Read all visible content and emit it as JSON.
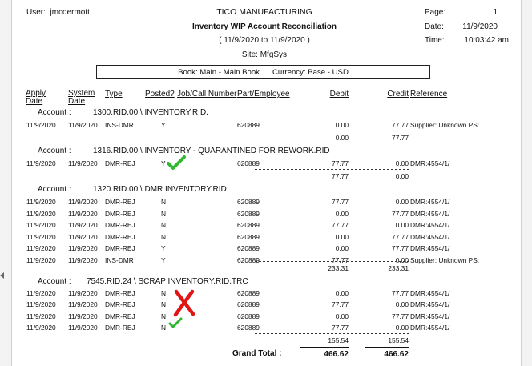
{
  "header": {
    "user_label": "User:",
    "user": "jmcdermott",
    "company": "TICO MANUFACTURING",
    "title": "Inventory WIP Account Reconciliation",
    "range": "( 11/9/2020 to 11/9/2020 )",
    "site": "Site: MfgSys",
    "page_label": "Page:",
    "page_value": "1",
    "date_label": "Date:",
    "date_value": "11/9/2020",
    "time_label": "Time:",
    "time_value": "10:03:42 am"
  },
  "book": {
    "book_text": "Book: Main - Main Book",
    "currency_text": "Currency: Base - USD"
  },
  "columns": {
    "apply_date": [
      "Apply",
      "Date"
    ],
    "system_date": [
      "System",
      "Date"
    ],
    "type": "Type",
    "posted": "Posted?",
    "job": "Job/Call Number",
    "part": "Part/Employee",
    "debit": "Debit",
    "credit": "Credit",
    "reference": "Reference"
  },
  "account_label": "Account :",
  "accounts": [
    {
      "name": "1300.RID.00 \\ INVENTORY.RID.",
      "rows": [
        {
          "apply": "11/9/2020",
          "system": "11/9/2020",
          "type": "INS-DMR",
          "posted": "Y",
          "part": "620889",
          "debit": "0.00",
          "credit": "77.77",
          "ref": "Supplier: Unknown PS:"
        }
      ],
      "total_debit": "0.00",
      "total_credit": "77.77"
    },
    {
      "name": "1316.RID.00 \\ INVENTORY - QUARANTINED FOR REWORK.RID",
      "rows": [
        {
          "apply": "11/9/2020",
          "system": "11/9/2020",
          "type": "DMR-REJ",
          "posted": "Y",
          "part": "620889",
          "debit": "77.77",
          "credit": "0.00",
          "ref": "DMR:4554/1/"
        }
      ],
      "total_debit": "77.77",
      "total_credit": "0.00"
    },
    {
      "name": "1320.RID.00 \\ DMR INVENTORY.RID.",
      "rows": [
        {
          "apply": "11/9/2020",
          "system": "11/9/2020",
          "type": "DMR-REJ",
          "posted": "N",
          "part": "620889",
          "debit": "77.77",
          "credit": "0.00",
          "ref": "DMR:4554/1/"
        },
        {
          "apply": "11/9/2020",
          "system": "11/9/2020",
          "type": "DMR-REJ",
          "posted": "N",
          "part": "620889",
          "debit": "0.00",
          "credit": "77.77",
          "ref": "DMR:4554/1/"
        },
        {
          "apply": "11/9/2020",
          "system": "11/9/2020",
          "type": "DMR-REJ",
          "posted": "N",
          "part": "620889",
          "debit": "77.77",
          "credit": "0.00",
          "ref": "DMR:4554/1/"
        },
        {
          "apply": "11/9/2020",
          "system": "11/9/2020",
          "type": "DMR-REJ",
          "posted": "N",
          "part": "620889",
          "debit": "0.00",
          "credit": "77.77",
          "ref": "DMR:4554/1/"
        },
        {
          "apply": "11/9/2020",
          "system": "11/9/2020",
          "type": "DMR-REJ",
          "posted": "Y",
          "part": "620889",
          "debit": "0.00",
          "credit": "77.77",
          "ref": "DMR:4554/1/"
        },
        {
          "apply": "11/9/2020",
          "system": "11/9/2020",
          "type": "INS-DMR",
          "posted": "Y",
          "part": "620889",
          "debit": "77.77",
          "credit": "0.00",
          "ref": "Supplier: Unknown PS:"
        }
      ],
      "total_debit": "233.31",
      "total_credit": "233.31"
    },
    {
      "name": "7545.RID.24 \\ SCRAP INVENTORY.RID.TRC",
      "rows": [
        {
          "apply": "11/9/2020",
          "system": "11/9/2020",
          "type": "DMR-REJ",
          "posted": "N",
          "part": "620889",
          "debit": "0.00",
          "credit": "77.77",
          "ref": "DMR:4554/1/"
        },
        {
          "apply": "11/9/2020",
          "system": "11/9/2020",
          "type": "DMR-REJ",
          "posted": "N",
          "part": "620889",
          "debit": "77.77",
          "credit": "0.00",
          "ref": "DMR:4554/1/"
        },
        {
          "apply": "11/9/2020",
          "system": "11/9/2020",
          "type": "DMR-REJ",
          "posted": "N",
          "part": "620889",
          "debit": "0.00",
          "credit": "77.77",
          "ref": "DMR:4554/1/"
        },
        {
          "apply": "11/9/2020",
          "system": "11/9/2020",
          "type": "DMR-REJ",
          "posted": "N",
          "part": "620889",
          "debit": "77.77",
          "credit": "0.00",
          "ref": "DMR:4554/1/"
        }
      ],
      "total_debit": "155.54",
      "total_credit": "155.54"
    }
  ],
  "grand_total": {
    "label": "Grand Total :",
    "debit": "466.62",
    "credit": "466.62"
  },
  "annotations": {
    "check_color": "#2fb82f",
    "x_color": "#e01515",
    "marks": [
      "green-check",
      "green-check",
      "red-x"
    ]
  }
}
